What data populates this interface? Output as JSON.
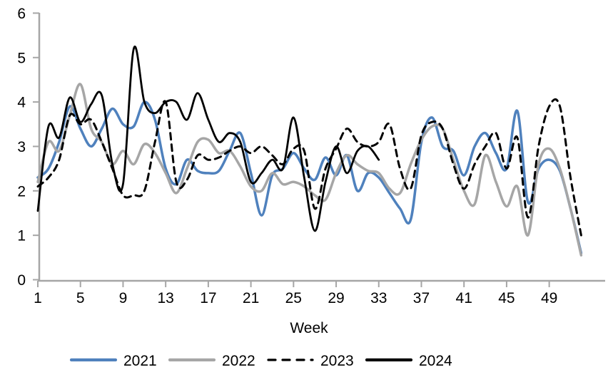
{
  "chart_data": {
    "type": "line",
    "title": "",
    "xlabel": "Week",
    "ylabel": "",
    "ylim": [
      0,
      6
    ],
    "xlim": [
      1,
      52
    ],
    "grid": false,
    "legend_position": "bottom",
    "axis_color": "#A6A6A6",
    "text_color": "#000000",
    "yticks": [
      0,
      1,
      2,
      3,
      4,
      5,
      6
    ],
    "xticks": [
      1,
      5,
      9,
      13,
      17,
      21,
      25,
      29,
      33,
      37,
      41,
      45,
      49
    ],
    "x": [
      1,
      2,
      3,
      4,
      5,
      6,
      7,
      8,
      9,
      10,
      11,
      12,
      13,
      14,
      15,
      16,
      17,
      18,
      19,
      20,
      21,
      22,
      23,
      24,
      25,
      26,
      27,
      28,
      29,
      30,
      31,
      32,
      33,
      34,
      35,
      36,
      37,
      38,
      39,
      40,
      41,
      42,
      43,
      44,
      45,
      46,
      47,
      48,
      49,
      50,
      51,
      52
    ],
    "series": [
      {
        "name": "2021",
        "color": "#4F81BD",
        "style": "solid",
        "width": 3.5,
        "values": [
          2.3,
          2.5,
          3.1,
          3.9,
          3.4,
          3.0,
          3.4,
          3.85,
          3.5,
          3.45,
          4.0,
          3.6,
          2.5,
          2.15,
          2.7,
          2.45,
          2.4,
          2.45,
          2.9,
          3.3,
          2.4,
          1.45,
          2.35,
          2.5,
          2.85,
          2.5,
          2.25,
          2.75,
          2.35,
          2.8,
          2.0,
          2.4,
          2.3,
          1.95,
          1.6,
          1.35,
          3.1,
          3.65,
          3.0,
          2.9,
          2.35,
          3.0,
          3.3,
          2.85,
          2.5,
          3.8,
          1.75,
          2.5,
          2.7,
          2.45,
          1.6,
          0.6
        ]
      },
      {
        "name": "2022",
        "color": "#A6A6A6",
        "style": "solid",
        "width": 3.5,
        "values": [
          2.2,
          3.1,
          2.9,
          3.7,
          4.4,
          3.4,
          3.1,
          2.6,
          2.9,
          2.6,
          3.05,
          2.85,
          2.4,
          1.95,
          2.5,
          3.1,
          3.15,
          2.85,
          2.9,
          2.55,
          2.1,
          2.0,
          2.4,
          2.15,
          2.2,
          2.1,
          1.9,
          1.8,
          2.4,
          2.8,
          2.6,
          2.45,
          2.4,
          2.05,
          1.95,
          2.6,
          3.15,
          3.45,
          3.4,
          2.7,
          2.0,
          1.7,
          2.8,
          2.2,
          1.65,
          2.1,
          1.0,
          2.6,
          2.95,
          2.5,
          1.6,
          0.55
        ]
      },
      {
        "name": "2023",
        "color": "#000000",
        "style": "dashed",
        "width": 3,
        "values": [
          2.1,
          2.3,
          2.7,
          3.7,
          3.5,
          3.6,
          3.1,
          2.5,
          1.9,
          1.9,
          2.0,
          3.1,
          4.0,
          2.2,
          2.25,
          2.8,
          2.7,
          2.75,
          2.9,
          3.0,
          2.85,
          3.0,
          2.8,
          2.6,
          2.95,
          2.9,
          1.6,
          2.5,
          2.95,
          3.4,
          3.1,
          3.0,
          3.1,
          3.5,
          2.5,
          2.05,
          3.25,
          3.55,
          3.4,
          2.6,
          2.05,
          2.6,
          3.0,
          3.3,
          2.5,
          3.2,
          1.4,
          3.0,
          3.9,
          3.9,
          2.3,
          1.0
        ]
      },
      {
        "name": "2024",
        "color": "#000000",
        "style": "solid",
        "width": 2.8,
        "values": [
          1.55,
          3.45,
          3.2,
          4.1,
          3.55,
          3.95,
          4.15,
          2.6,
          2.15,
          5.2,
          4.0,
          3.75,
          4.0,
          4.0,
          3.6,
          4.2,
          3.6,
          3.1,
          3.3,
          3.1,
          2.2,
          2.4,
          2.7,
          2.5,
          3.65,
          2.3,
          1.1,
          2.2,
          3.0,
          2.4,
          2.9,
          3.0,
          2.7
        ]
      }
    ]
  }
}
